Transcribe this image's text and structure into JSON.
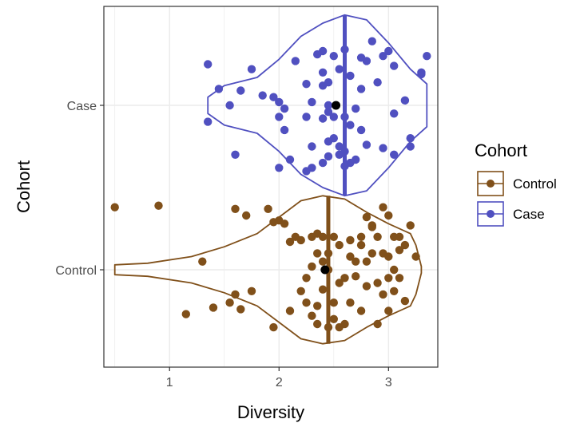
{
  "chart_data": {
    "type": "violin",
    "orientation": "horizontal",
    "xlabel": "Diversity",
    "ylabel": "Cohort",
    "xlim": [
      0.4,
      3.45
    ],
    "x_ticks": [
      1,
      2,
      3
    ],
    "x_tick_labels": [
      "1",
      "2",
      "3"
    ],
    "grid": true,
    "legend": {
      "title": "Cohort",
      "placement": "right",
      "entries": [
        "Control",
        "Case"
      ]
    },
    "series": [
      {
        "name": "Case",
        "category": "Case",
        "color": "#5050c0",
        "median": 2.6,
        "mean": 2.52,
        "violin_profile": [
          [
            1.35,
            0.05
          ],
          [
            1.5,
            0.12
          ],
          [
            1.8,
            0.17
          ],
          [
            2.0,
            0.28
          ],
          [
            2.2,
            0.42
          ],
          [
            2.4,
            0.5
          ],
          [
            2.6,
            0.55
          ],
          [
            2.8,
            0.52
          ],
          [
            3.0,
            0.38
          ],
          [
            3.2,
            0.22
          ],
          [
            3.35,
            0.13
          ]
        ],
        "points": [
          [
            1.35,
            0.25
          ],
          [
            1.45,
            0.1
          ],
          [
            1.55,
            0.0
          ],
          [
            1.75,
            0.22
          ],
          [
            1.65,
            0.09
          ],
          [
            1.35,
            -0.1
          ],
          [
            1.85,
            0.06
          ],
          [
            1.95,
            0.05
          ],
          [
            2.15,
            0.27
          ],
          [
            2.05,
            -0.02
          ],
          [
            2.25,
            0.13
          ],
          [
            2.35,
            0.31
          ],
          [
            2.4,
            0.2
          ],
          [
            2.45,
            0.14
          ],
          [
            2.4,
            0.33
          ],
          [
            2.5,
            0.3
          ],
          [
            2.4,
            0.12
          ],
          [
            2.45,
            0.0
          ],
          [
            2.6,
            0.34
          ],
          [
            2.65,
            0.18
          ],
          [
            2.75,
            0.29
          ],
          [
            2.85,
            0.39
          ],
          [
            2.8,
            0.27
          ],
          [
            2.9,
            0.14
          ],
          [
            2.95,
            0.3
          ],
          [
            3.0,
            0.33
          ],
          [
            3.05,
            0.24
          ],
          [
            3.15,
            0.03
          ],
          [
            3.3,
            0.2
          ],
          [
            3.35,
            0.3
          ],
          [
            3.3,
            0.19
          ],
          [
            3.2,
            -0.25
          ],
          [
            3.2,
            -0.2
          ],
          [
            3.05,
            -0.05
          ],
          [
            2.75,
            0.1
          ],
          [
            2.7,
            -0.02
          ],
          [
            2.5,
            -0.07
          ],
          [
            2.6,
            -0.07
          ],
          [
            2.65,
            -0.12
          ],
          [
            2.4,
            -0.08
          ],
          [
            2.45,
            -0.04
          ],
          [
            2.3,
            0.02
          ],
          [
            2.25,
            -0.07
          ],
          [
            2.0,
            -0.07
          ],
          [
            2.3,
            -0.25
          ],
          [
            2.4,
            -0.35
          ],
          [
            2.45,
            -0.31
          ],
          [
            2.55,
            -0.25
          ],
          [
            2.55,
            -0.3
          ],
          [
            2.6,
            -0.28
          ],
          [
            2.65,
            -0.35
          ],
          [
            2.7,
            -0.33
          ],
          [
            2.6,
            -0.37
          ],
          [
            2.1,
            -0.33
          ],
          [
            1.6,
            -0.3
          ],
          [
            2.0,
            -0.38
          ],
          [
            2.3,
            -0.38
          ],
          [
            2.8,
            -0.24
          ],
          [
            2.95,
            -0.26
          ],
          [
            3.05,
            -0.3
          ],
          [
            2.55,
            0.22
          ],
          [
            2.0,
            0.02
          ],
          [
            2.05,
            -0.15
          ],
          [
            2.45,
            -0.22
          ],
          [
            2.5,
            -0.2
          ],
          [
            2.75,
            -0.15
          ],
          [
            2.25,
            -0.4
          ]
        ]
      },
      {
        "name": "Control",
        "category": "Control",
        "color": "#80501a",
        "median": 2.45,
        "mean": 2.42,
        "violin_profile": [
          [
            0.5,
            0.03
          ],
          [
            0.8,
            0.04
          ],
          [
            1.2,
            0.08
          ],
          [
            1.5,
            0.14
          ],
          [
            1.8,
            0.22
          ],
          [
            2.0,
            0.32
          ],
          [
            2.2,
            0.42
          ],
          [
            2.4,
            0.45
          ],
          [
            2.6,
            0.43
          ],
          [
            2.8,
            0.35
          ],
          [
            3.0,
            0.28
          ],
          [
            3.2,
            0.22
          ],
          [
            3.25,
            0.15
          ],
          [
            3.3,
            0.02
          ]
        ],
        "points": [
          [
            0.5,
            0.38
          ],
          [
            0.9,
            0.39
          ],
          [
            1.3,
            0.05
          ],
          [
            1.15,
            -0.27
          ],
          [
            1.4,
            -0.23
          ],
          [
            1.55,
            -0.2
          ],
          [
            1.6,
            -0.15
          ],
          [
            1.65,
            -0.24
          ],
          [
            1.75,
            -0.13
          ],
          [
            1.95,
            -0.35
          ],
          [
            2.1,
            -0.25
          ],
          [
            2.2,
            -0.13
          ],
          [
            2.25,
            -0.2
          ],
          [
            2.3,
            -0.28
          ],
          [
            2.35,
            -0.33
          ],
          [
            2.25,
            -0.05
          ],
          [
            2.3,
            0.02
          ],
          [
            2.35,
            0.1
          ],
          [
            2.4,
            0.2
          ],
          [
            2.45,
            0.1
          ],
          [
            2.45,
            -0.35
          ],
          [
            2.5,
            -0.3
          ],
          [
            2.55,
            -0.35
          ],
          [
            2.6,
            -0.33
          ],
          [
            2.65,
            0.08
          ],
          [
            2.7,
            -0.04
          ],
          [
            2.75,
            0.2
          ],
          [
            2.8,
            0.32
          ],
          [
            2.85,
            0.27
          ],
          [
            2.9,
            0.2
          ],
          [
            2.95,
            0.38
          ],
          [
            3.0,
            0.33
          ],
          [
            3.05,
            0.2
          ],
          [
            3.1,
            0.2
          ],
          [
            3.15,
            0.15
          ],
          [
            3.2,
            0.27
          ],
          [
            3.25,
            0.08
          ],
          [
            3.1,
            -0.05
          ],
          [
            3.0,
            -0.25
          ],
          [
            2.95,
            -0.15
          ],
          [
            2.85,
            0.1
          ],
          [
            2.65,
            -0.2
          ],
          [
            2.55,
            0.15
          ],
          [
            2.6,
            -0.05
          ],
          [
            2.7,
            0.05
          ],
          [
            2.8,
            -0.1
          ],
          [
            2.75,
            -0.25
          ],
          [
            2.9,
            -0.33
          ],
          [
            3.0,
            0.08
          ],
          [
            3.05,
            0.0
          ],
          [
            1.6,
            0.37
          ],
          [
            1.7,
            0.33
          ],
          [
            1.9,
            0.37
          ],
          [
            1.95,
            0.29
          ],
          [
            2.0,
            0.3
          ],
          [
            2.1,
            0.17
          ],
          [
            2.2,
            0.18
          ],
          [
            2.3,
            0.2
          ],
          [
            2.35,
            0.22
          ],
          [
            2.5,
            0.2
          ],
          [
            2.4,
            -0.12
          ],
          [
            2.5,
            -0.2
          ],
          [
            2.55,
            -0.08
          ],
          [
            2.65,
            0.18
          ],
          [
            2.75,
            0.15
          ],
          [
            2.85,
            0.26
          ],
          [
            2.95,
            0.1
          ],
          [
            3.0,
            -0.05
          ],
          [
            3.05,
            -0.13
          ],
          [
            3.15,
            -0.19
          ],
          [
            2.4,
            0.05
          ],
          [
            2.35,
            -0.22
          ],
          [
            2.45,
            0.0
          ],
          [
            2.8,
            0.05
          ],
          [
            2.9,
            -0.08
          ],
          [
            3.1,
            0.12
          ],
          [
            2.05,
            0.28
          ],
          [
            2.15,
            0.2
          ]
        ]
      }
    ]
  }
}
